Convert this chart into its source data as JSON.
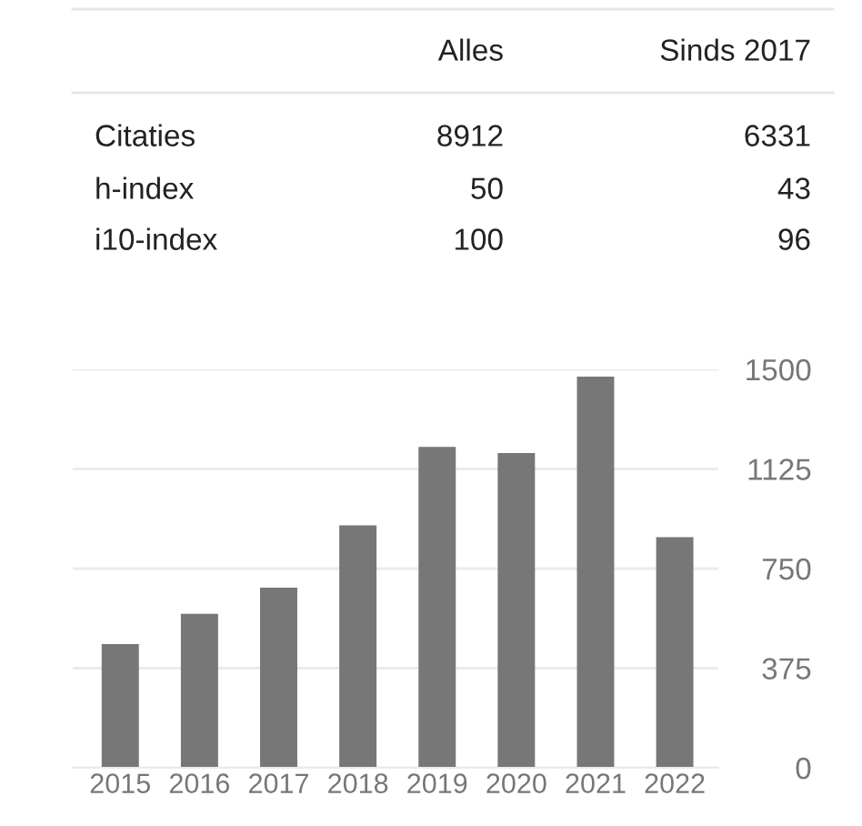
{
  "chart_data": [
    {
      "type": "other",
      "categories": [
        "Citaties",
        "h-index",
        "i10-index"
      ],
      "data_labels": true,
      "series": [
        {
          "name": "Alles",
          "values": [
            8912,
            50,
            100
          ]
        },
        {
          "name": "Sinds 2017",
          "values": [
            6331,
            43,
            96
          ]
        }
      ]
    },
    {
      "type": "bar",
      "categories": [
        "2015",
        "2016",
        "2017",
        "2018",
        "2019",
        "2020",
        "2021",
        "2022"
      ],
      "values": [
        466,
        580,
        678,
        913,
        1208,
        1185,
        1473,
        868
      ],
      "color": "#777777",
      "ylim": [
        0,
        1500
      ],
      "yticks": [
        0,
        375,
        750,
        1125,
        1500
      ],
      "grid": "y"
    }
  ]
}
